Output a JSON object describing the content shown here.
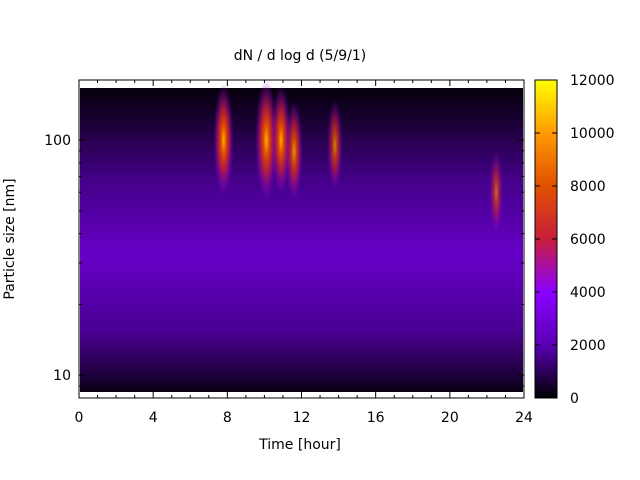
{
  "chart_data": {
    "type": "heatmap",
    "title": "dN / d log d (5/9/1)",
    "xlabel": "Time [hour]",
    "ylabel": "Particle size [nm]",
    "xlim": [
      0,
      24
    ],
    "ylim": [
      8,
      180
    ],
    "y_scale": "log",
    "x_ticks": [
      0,
      4,
      8,
      12,
      16,
      20,
      24
    ],
    "y_ticks": [
      10,
      100
    ],
    "colorbar": {
      "min": 0,
      "max": 12000,
      "ticks": [
        0,
        2000,
        4000,
        6000,
        8000,
        10000,
        12000
      ],
      "colormap": [
        "#000000",
        "#5a00b4",
        "#8a00ff",
        "#c81e3c",
        "#e05000",
        "#ff9a00",
        "#ffff00"
      ]
    },
    "grid": false,
    "background_level": 2500,
    "hotspots": [
      {
        "time": 7.8,
        "size": 100,
        "value": 9000
      },
      {
        "time": 10.1,
        "size": 100,
        "value": 10500
      },
      {
        "time": 10.9,
        "size": 100,
        "value": 8500
      },
      {
        "time": 11.6,
        "size": 90,
        "value": 7000
      },
      {
        "time": 13.8,
        "size": 95,
        "value": 5500
      },
      {
        "time": 22.5,
        "size": 60,
        "value": 4200
      }
    ]
  }
}
